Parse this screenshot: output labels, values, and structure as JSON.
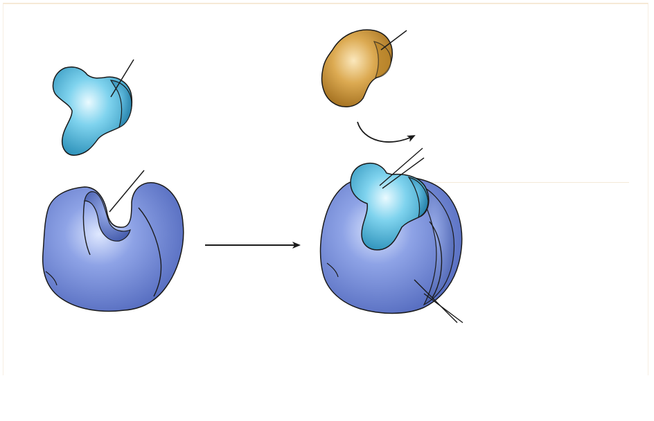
{
  "figure": {
    "labels": [],
    "colors": {
      "receptor": "#6f86d6",
      "receptor_dark": "#4d64b8",
      "ligand": "#5ec2e2",
      "ligand_dark": "#2e8fb5",
      "competitor": "#d9a449",
      "competitor_dark": "#9e6b1e",
      "outline": "#1a1a1a",
      "leader": "#1a1a1a",
      "frame": "#f6e9d6"
    },
    "arrows": [
      "reaction-arrow",
      "curved-arrow"
    ]
  }
}
